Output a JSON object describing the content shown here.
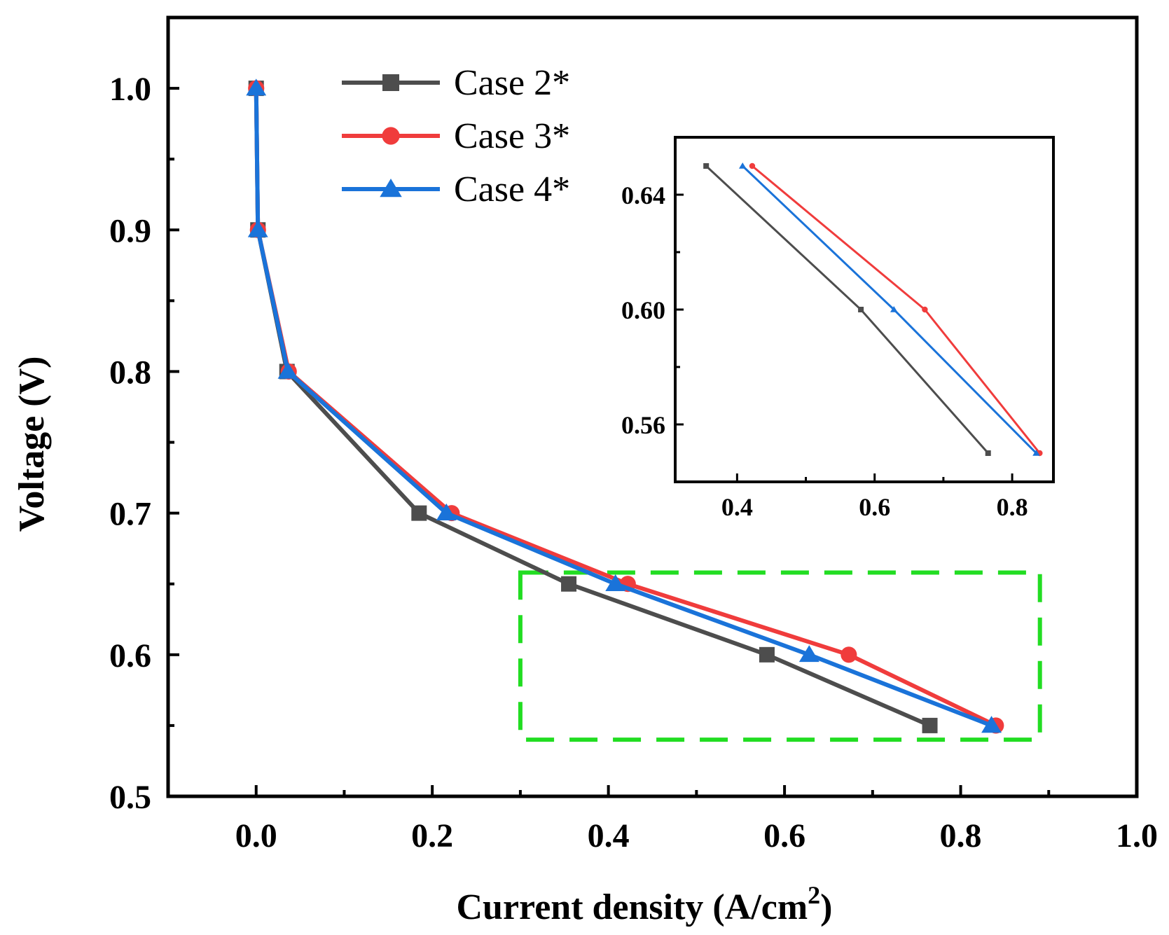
{
  "chart_data": {
    "type": "line",
    "xlabel": "Current density (A/cm",
    "xlabel_sup": "2",
    "xlabel_close": ")",
    "ylabel": "Voltage (V)",
    "xlim": [
      -0.1,
      1.0
    ],
    "ylim": [
      0.5,
      1.05
    ],
    "xticks": [
      "0.0",
      "0.2",
      "0.4",
      "0.6",
      "0.8",
      "1.0"
    ],
    "yticks": [
      "0.5",
      "0.6",
      "0.7",
      "0.8",
      "0.9",
      "1.0"
    ],
    "legend_position": "top-center",
    "series": [
      {
        "name": "Case 2*",
        "color": "#4d4d4d",
        "marker": "square",
        "x": [
          0.0,
          0.002,
          0.035,
          0.185,
          0.355,
          0.58,
          0.765
        ],
        "y": [
          1.0,
          0.9,
          0.8,
          0.7,
          0.65,
          0.6,
          0.55
        ]
      },
      {
        "name": "Case 3*",
        "color": "#f03c3c",
        "marker": "circle",
        "x": [
          0.0,
          0.002,
          0.037,
          0.222,
          0.422,
          0.673,
          0.84
        ],
        "y": [
          1.0,
          0.9,
          0.8,
          0.7,
          0.65,
          0.6,
          0.55
        ]
      },
      {
        "name": "Case 4*",
        "color": "#1a73d9",
        "marker": "triangle",
        "x": [
          0.0,
          0.002,
          0.036,
          0.216,
          0.408,
          0.628,
          0.835
        ],
        "y": [
          1.0,
          0.9,
          0.8,
          0.7,
          0.65,
          0.6,
          0.55
        ]
      }
    ],
    "highlight_box": {
      "color": "#22dd22",
      "x_range": [
        0.3,
        0.89
      ],
      "y_range": [
        0.54,
        0.658
      ]
    },
    "inset": {
      "xlim": [
        0.31,
        0.86
      ],
      "ylim": [
        0.54,
        0.66
      ],
      "xticks": [
        "0.4",
        "0.6",
        "0.8"
      ],
      "yticks": [
        "0.56",
        "0.60",
        "0.64"
      ]
    }
  }
}
